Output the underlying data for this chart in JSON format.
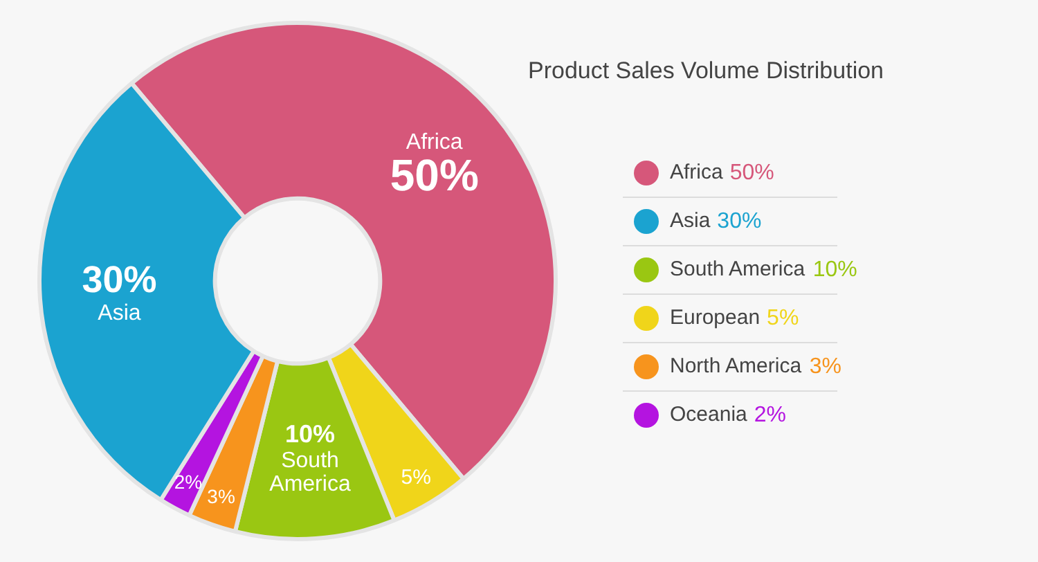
{
  "chart_data": {
    "type": "donut",
    "title": "Product Sales Volume Distribution",
    "categories": [
      "Africa",
      "European",
      "South America",
      "North America",
      "Oceania",
      "Asia"
    ],
    "values": [
      50,
      5,
      10,
      3,
      2,
      30
    ],
    "colors": [
      "#d6577a",
      "#f0d51a",
      "#9ac712",
      "#f7941d",
      "#b414e0",
      "#1ba3d0"
    ],
    "value_labels": [
      "50%",
      "5%",
      "10%",
      "3%",
      "2%",
      "30%"
    ],
    "legend": "right"
  }
}
